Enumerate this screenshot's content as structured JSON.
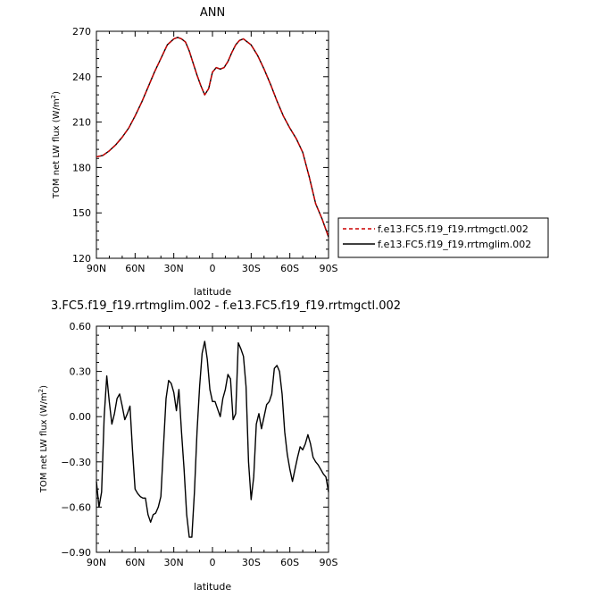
{
  "chart_data": [
    {
      "type": "line",
      "title": "ANN",
      "xlabel": "latitude",
      "ylabel_main": "TOM net LW flux (W/m",
      "ylabel_sup": "2",
      "ylabel_close": ")",
      "xlim": [
        90,
        -90
      ],
      "ylim": [
        120,
        270
      ],
      "xticks": [
        {
          "value": 90,
          "label": "90N"
        },
        {
          "value": 60,
          "label": "60N"
        },
        {
          "value": 30,
          "label": "30N"
        },
        {
          "value": 0,
          "label": "0"
        },
        {
          "value": -30,
          "label": "30S"
        },
        {
          "value": -60,
          "label": "60S"
        },
        {
          "value": -90,
          "label": "90S"
        }
      ],
      "yticks": [
        {
          "value": 120,
          "label": "120"
        },
        {
          "value": 150,
          "label": "150"
        },
        {
          "value": 180,
          "label": "180"
        },
        {
          "value": 210,
          "label": "210"
        },
        {
          "value": 240,
          "label": "240"
        },
        {
          "value": 270,
          "label": "270"
        }
      ],
      "legend_placement": "right",
      "series": [
        {
          "name": "f.e13.FC5.f19_f19.rrtmgctl.002",
          "color": "#cc0000",
          "dash": "dashed",
          "x": [
            90,
            85,
            80,
            75,
            70,
            65,
            60,
            55,
            50,
            45,
            40,
            35,
            30,
            27,
            24,
            21,
            18,
            15,
            12,
            9,
            6,
            3,
            0,
            -3,
            -6,
            -9,
            -12,
            -15,
            -18,
            -21,
            -24,
            -27,
            -30,
            -35,
            -40,
            -45,
            -50,
            -55,
            -60,
            -65,
            -70,
            -75,
            -80,
            -85,
            -90
          ],
          "values": [
            187,
            188,
            191,
            195,
            200,
            206,
            214,
            223,
            233,
            243,
            252,
            261,
            265,
            266,
            265,
            263,
            257,
            249,
            241,
            234,
            228,
            232,
            243,
            246,
            245,
            246,
            250,
            256,
            261,
            264,
            265,
            263,
            261,
            254,
            245,
            235,
            224,
            214,
            206,
            199,
            190,
            174,
            156,
            146,
            134
          ]
        },
        {
          "name": "f.e13.FC5.f19_f19.rrtmglim.002",
          "color": "#000000",
          "dash": "solid",
          "x": [
            90,
            85,
            80,
            75,
            70,
            65,
            60,
            55,
            50,
            45,
            40,
            35,
            30,
            27,
            24,
            21,
            18,
            15,
            12,
            9,
            6,
            3,
            0,
            -3,
            -6,
            -9,
            -12,
            -15,
            -18,
            -21,
            -24,
            -27,
            -30,
            -35,
            -40,
            -45,
            -50,
            -55,
            -60,
            -65,
            -70,
            -75,
            -80,
            -85,
            -90
          ],
          "values": [
            187,
            188,
            191,
            195,
            200,
            206,
            214,
            223,
            233,
            243,
            252,
            261,
            265,
            266,
            265,
            263,
            257,
            249,
            241,
            234,
            228,
            232,
            243,
            246,
            245,
            246,
            250,
            256,
            261,
            264,
            265,
            263,
            261,
            254,
            245,
            235,
            224,
            214,
            206,
            199,
            190,
            174,
            156,
            146,
            134
          ]
        }
      ]
    },
    {
      "type": "line",
      "title": "3.FC5.f19_f19.rrtmglim.002 - f.e13.FC5.f19_f19.rrtmgctl.002",
      "xlabel": "latitude",
      "ylabel_main": "TOM net LW flux (W/m",
      "ylabel_sup": "2",
      "ylabel_close": ")",
      "xlim": [
        90,
        -90
      ],
      "ylim": [
        -0.9,
        0.6
      ],
      "xticks": [
        {
          "value": 90,
          "label": "90N"
        },
        {
          "value": 60,
          "label": "60N"
        },
        {
          "value": 30,
          "label": "30N"
        },
        {
          "value": 0,
          "label": "0"
        },
        {
          "value": -30,
          "label": "30S"
        },
        {
          "value": -60,
          "label": "60S"
        },
        {
          "value": -90,
          "label": "90S"
        }
      ],
      "yticks": [
        {
          "value": -0.9,
          "label": "−0.90"
        },
        {
          "value": -0.6,
          "label": "−0.60"
        },
        {
          "value": -0.3,
          "label": "−0.30"
        },
        {
          "value": 0.0,
          "label": "0.00"
        },
        {
          "value": 0.3,
          "label": "0.30"
        },
        {
          "value": 0.6,
          "label": "0.60"
        }
      ],
      "series": [
        {
          "name": "",
          "color": "#000000",
          "dash": "solid",
          "x": [
            90,
            88,
            86,
            84,
            82,
            80,
            78,
            76,
            74,
            72,
            70,
            68,
            66,
            64,
            62,
            60,
            58,
            56,
            54,
            52,
            50,
            48,
            46,
            44,
            42,
            40,
            38,
            36,
            34,
            32,
            30,
            28,
            26,
            24,
            22,
            20,
            18,
            16,
            14,
            12,
            10,
            8,
            6,
            4,
            2,
            0,
            -2,
            -4,
            -6,
            -8,
            -10,
            -12,
            -14,
            -16,
            -18,
            -20,
            -22,
            -24,
            -26,
            -28,
            -30,
            -32,
            -34,
            -36,
            -38,
            -40,
            -42,
            -44,
            -46,
            -48,
            -50,
            -52,
            -54,
            -56,
            -58,
            -60,
            -62,
            -64,
            -66,
            -68,
            -70,
            -72,
            -74,
            -76,
            -78,
            -80,
            -82,
            -84,
            -86,
            -88,
            -90
          ],
          "values": [
            -0.43,
            -0.6,
            -0.5,
            0.0,
            0.27,
            0.1,
            -0.05,
            0.02,
            0.12,
            0.15,
            0.07,
            -0.02,
            0.02,
            0.07,
            -0.22,
            -0.48,
            -0.51,
            -0.53,
            -0.54,
            -0.54,
            -0.65,
            -0.7,
            -0.65,
            -0.64,
            -0.6,
            -0.53,
            -0.2,
            0.12,
            0.24,
            0.22,
            0.16,
            0.04,
            0.18,
            -0.1,
            -0.35,
            -0.65,
            -0.8,
            -0.8,
            -0.5,
            -0.1,
            0.2,
            0.42,
            0.5,
            0.38,
            0.18,
            0.1,
            0.1,
            0.05,
            0.0,
            0.12,
            0.18,
            0.28,
            0.25,
            -0.02,
            0.02,
            0.49,
            0.45,
            0.4,
            0.2,
            -0.3,
            -0.55,
            -0.4,
            -0.05,
            0.02,
            -0.08,
            0.0,
            0.08,
            0.1,
            0.15,
            0.32,
            0.34,
            0.3,
            0.15,
            -0.1,
            -0.25,
            -0.35,
            -0.43,
            -0.35,
            -0.27,
            -0.2,
            -0.22,
            -0.18,
            -0.12,
            -0.18,
            -0.27,
            -0.3,
            -0.32,
            -0.35,
            -0.38,
            -0.4,
            -0.5
          ]
        }
      ]
    }
  ]
}
